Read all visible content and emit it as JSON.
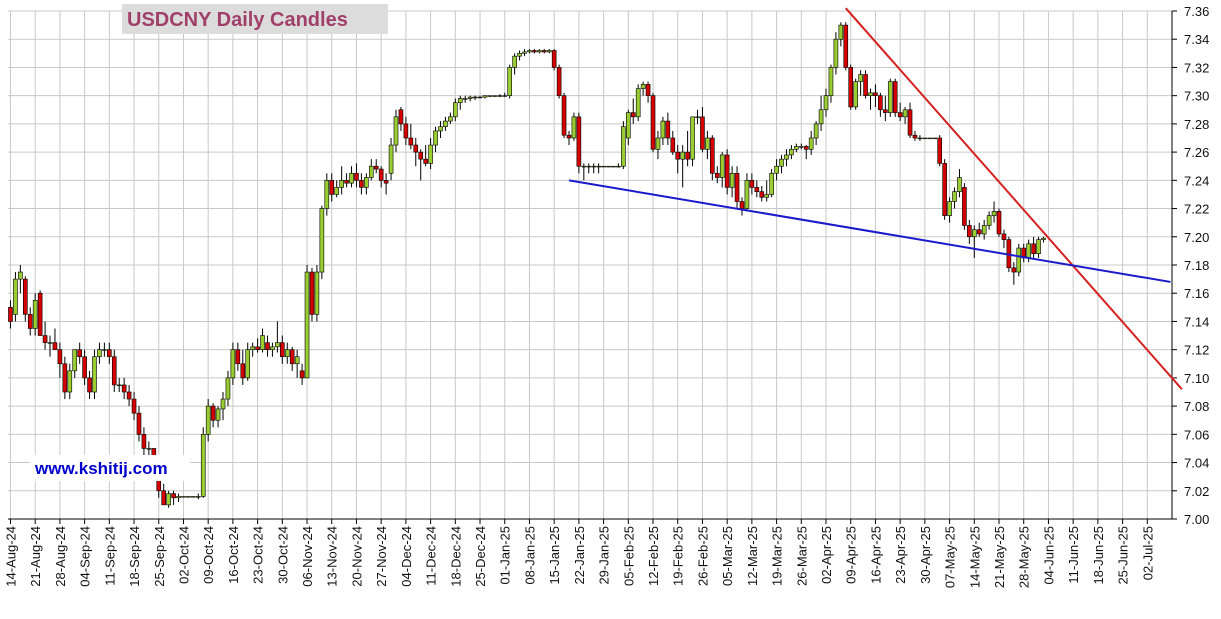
{
  "chart_data": {
    "type": "candlestick",
    "title": "USDCNY Daily Candles",
    "watermark": "www.kshitij.com",
    "up_color": "#9acd32",
    "down_color": "#d40000",
    "grid": true,
    "ylim": [
      7.0,
      7.36
    ],
    "yticks": [
      {
        "value": 7.0,
        "label": "7.00"
      },
      7.02,
      7.04,
      7.06,
      7.08,
      {
        "value": 7.1,
        "label": "7.10"
      },
      7.12,
      7.14,
      7.16,
      7.18,
      {
        "value": 7.2,
        "label": "7.20"
      },
      7.22,
      7.24,
      7.26,
      7.28,
      {
        "value": 7.3,
        "label": "7.30"
      },
      7.32,
      7.34,
      7.36
    ],
    "xlim": [
      -0.5,
      235
    ],
    "xticks": [
      {
        "value": 0,
        "label": "14-Aug-24"
      },
      {
        "value": 5,
        "label": "21-Aug-24"
      },
      {
        "value": 10,
        "label": "28-Aug-24"
      },
      {
        "value": 15,
        "label": "04-Sep-24"
      },
      {
        "value": 20,
        "label": "11-Sep-24"
      },
      {
        "value": 25,
        "label": "18-Sep-24"
      },
      {
        "value": 30,
        "label": "25-Sep-24"
      },
      {
        "value": 35,
        "label": "02-Oct-24"
      },
      {
        "value": 40,
        "label": "09-Oct-24"
      },
      {
        "value": 45,
        "label": "16-Oct-24"
      },
      {
        "value": 50,
        "label": "23-Oct-24"
      },
      {
        "value": 55,
        "label": "30-Oct-24"
      },
      {
        "value": 60,
        "label": "06-Nov-24"
      },
      {
        "value": 65,
        "label": "13-Nov-24"
      },
      {
        "value": 70,
        "label": "20-Nov-24"
      },
      {
        "value": 75,
        "label": "27-Nov-24"
      },
      {
        "value": 80,
        "label": "04-Dec-24"
      },
      {
        "value": 85,
        "label": "11-Dec-24"
      },
      {
        "value": 90,
        "label": "18-Dec-24"
      },
      {
        "value": 95,
        "label": "25-Dec-24"
      },
      {
        "value": 100,
        "label": "01-Jan-25"
      },
      {
        "value": 105,
        "label": "08-Jan-25"
      },
      {
        "value": 110,
        "label": "15-Jan-25"
      },
      {
        "value": 115,
        "label": "22-Jan-25"
      },
      {
        "value": 120,
        "label": "29-Jan-25"
      },
      {
        "value": 125,
        "label": "05-Feb-25"
      },
      {
        "value": 130,
        "label": "12-Feb-25"
      },
      {
        "value": 135,
        "label": "19-Feb-25"
      },
      {
        "value": 140,
        "label": "26-Feb-25"
      },
      {
        "value": 145,
        "label": "05-Mar-25"
      },
      {
        "value": 150,
        "label": "12-Mar-25"
      },
      {
        "value": 155,
        "label": "19-Mar-25"
      },
      {
        "value": 160,
        "label": "26-Mar-25"
      },
      {
        "value": 165,
        "label": "02-Apr-25"
      },
      {
        "value": 170,
        "label": "09-Apr-25"
      },
      {
        "value": 175,
        "label": "16-Apr-25"
      },
      {
        "value": 180,
        "label": "23-Apr-25"
      },
      {
        "value": 185,
        "label": "30-Apr-25"
      },
      {
        "value": 190,
        "label": "07-May-25"
      },
      {
        "value": 195,
        "label": "14-May-25"
      },
      {
        "value": 200,
        "label": "21-May-25"
      },
      {
        "value": 205,
        "label": "28-May-25"
      },
      {
        "value": 210,
        "label": "04-Jun-25"
      },
      {
        "value": 215,
        "label": "11-Jun-25"
      },
      {
        "value": 220,
        "label": "18-Jun-25"
      },
      {
        "value": 225,
        "label": "25-Jun-25"
      },
      {
        "value": 230,
        "label": "02-Jul-25"
      }
    ],
    "candles": [
      [
        7.15,
        7.155,
        7.135,
        7.14
      ],
      [
        7.145,
        7.175,
        7.14,
        7.17
      ],
      [
        7.17,
        7.18,
        7.16,
        7.175
      ],
      [
        7.17,
        7.172,
        7.14,
        7.145
      ],
      [
        7.145,
        7.15,
        7.13,
        7.135
      ],
      [
        7.135,
        7.16,
        7.13,
        7.155
      ],
      [
        7.16,
        7.162,
        7.13,
        7.13
      ],
      [
        7.13,
        7.14,
        7.12,
        7.125
      ],
      [
        7.125,
        7.13,
        7.115,
        7.125
      ],
      [
        7.125,
        7.135,
        7.12,
        7.12
      ],
      [
        7.12,
        7.125,
        7.1,
        7.11
      ],
      [
        7.11,
        7.115,
        7.085,
        7.09
      ],
      [
        7.09,
        7.11,
        7.085,
        7.105
      ],
      [
        7.105,
        7.12,
        7.1,
        7.12
      ],
      [
        7.12,
        7.125,
        7.11,
        7.115
      ],
      [
        7.115,
        7.12,
        7.095,
        7.1
      ],
      [
        7.1,
        7.105,
        7.085,
        7.09
      ],
      [
        7.09,
        7.12,
        7.085,
        7.115
      ],
      [
        7.115,
        7.125,
        7.11,
        7.12
      ],
      [
        7.12,
        7.125,
        7.115,
        7.12
      ],
      [
        7.12,
        7.125,
        7.11,
        7.115
      ],
      [
        7.115,
        7.12,
        7.09,
        7.095
      ],
      [
        7.095,
        7.1,
        7.09,
        7.095
      ],
      [
        7.095,
        7.1,
        7.085,
        7.09
      ],
      [
        7.09,
        7.095,
        7.08,
        7.085
      ],
      [
        7.085,
        7.09,
        7.07,
        7.075
      ],
      [
        7.075,
        7.08,
        7.055,
        7.06
      ],
      [
        7.06,
        7.065,
        7.045,
        7.05
      ],
      [
        7.05,
        7.055,
        7.045,
        7.05
      ],
      [
        7.05,
        7.05,
        7.03,
        7.035
      ],
      [
        7.035,
        7.04,
        7.015,
        7.02
      ],
      [
        7.02,
        7.025,
        7.01,
        7.01
      ],
      [
        7.01,
        7.02,
        7.008,
        7.018
      ],
      [
        7.018,
        7.02,
        7.01,
        7.015
      ],
      [
        7.015,
        7.018,
        7.012,
        7.016
      ],
      [
        7.016,
        7.016,
        7.016,
        7.016
      ],
      [
        7.016,
        7.016,
        7.016,
        7.016
      ],
      [
        7.016,
        7.016,
        7.016,
        7.016
      ],
      [
        7.016,
        7.018,
        7.014,
        7.016
      ],
      [
        7.016,
        7.065,
        7.015,
        7.06
      ],
      [
        7.06,
        7.085,
        7.055,
        7.08
      ],
      [
        7.08,
        7.082,
        7.065,
        7.07
      ],
      [
        7.07,
        7.08,
        7.065,
        7.078
      ],
      [
        7.078,
        7.09,
        7.07,
        7.085
      ],
      [
        7.085,
        7.105,
        7.08,
        7.1
      ],
      [
        7.1,
        7.125,
        7.095,
        7.12
      ],
      [
        7.12,
        7.125,
        7.105,
        7.11
      ],
      [
        7.11,
        7.12,
        7.095,
        7.1
      ],
      [
        7.1,
        7.125,
        7.098,
        7.12
      ],
      [
        7.12,
        7.125,
        7.115,
        7.122
      ],
      [
        7.122,
        7.128,
        7.118,
        7.12
      ],
      [
        7.12,
        7.135,
        7.118,
        7.13
      ],
      [
        7.125,
        7.13,
        7.115,
        7.12
      ],
      [
        7.12,
        7.125,
        7.115,
        7.122
      ],
      [
        7.122,
        7.14,
        7.118,
        7.125
      ],
      [
        7.125,
        7.13,
        7.11,
        7.115
      ],
      [
        7.115,
        7.125,
        7.11,
        7.12
      ],
      [
        7.12,
        7.122,
        7.105,
        7.11
      ],
      [
        7.11,
        7.12,
        7.1,
        7.115
      ],
      [
        7.105,
        7.11,
        7.095,
        7.1
      ],
      [
        7.1,
        7.18,
        7.1,
        7.175
      ],
      [
        7.175,
        7.178,
        7.14,
        7.145
      ],
      [
        7.145,
        7.18,
        7.14,
        7.175
      ],
      [
        7.175,
        7.222,
        7.17,
        7.22
      ],
      [
        7.22,
        7.245,
        7.215,
        7.24
      ],
      [
        7.24,
        7.245,
        7.225,
        7.23
      ],
      [
        7.23,
        7.24,
        7.228,
        7.235
      ],
      [
        7.235,
        7.25,
        7.23,
        7.24
      ],
      [
        7.24,
        7.245,
        7.235,
        7.238
      ],
      [
        7.238,
        7.25,
        7.235,
        7.245
      ],
      [
        7.245,
        7.252,
        7.235,
        7.24
      ],
      [
        7.24,
        7.245,
        7.23,
        7.235
      ],
      [
        7.235,
        7.245,
        7.23,
        7.242
      ],
      [
        7.242,
        7.255,
        7.24,
        7.25
      ],
      [
        7.25,
        7.255,
        7.245,
        7.248
      ],
      [
        7.248,
        7.25,
        7.235,
        7.24
      ],
      [
        7.24,
        7.245,
        7.23,
        7.238
      ],
      [
        7.245,
        7.27,
        7.24,
        7.265
      ],
      [
        7.265,
        7.29,
        7.26,
        7.285
      ],
      [
        7.29,
        7.292,
        7.275,
        7.28
      ],
      [
        7.28,
        7.285,
        7.265,
        7.27
      ],
      [
        7.27,
        7.28,
        7.262,
        7.265
      ],
      [
        7.265,
        7.27,
        7.25,
        7.26
      ],
      [
        7.26,
        7.262,
        7.24,
        7.255
      ],
      [
        7.255,
        7.265,
        7.25,
        7.252
      ],
      [
        7.252,
        7.27,
        7.248,
        7.265
      ],
      [
        7.265,
        7.278,
        7.26,
        7.275
      ],
      [
        7.275,
        7.282,
        7.27,
        7.278
      ],
      [
        7.278,
        7.285,
        7.275,
        7.282
      ],
      [
        7.282,
        7.288,
        7.28,
        7.285
      ],
      [
        7.285,
        7.298,
        7.282,
        7.295
      ],
      [
        7.295,
        7.3,
        7.29,
        7.298
      ],
      [
        7.298,
        7.3,
        7.295,
        7.298
      ],
      [
        7.298,
        7.3,
        7.296,
        7.299
      ],
      [
        7.299,
        7.3,
        7.297,
        7.299
      ],
      [
        7.299,
        7.3,
        7.298,
        7.299
      ],
      [
        7.299,
        7.3,
        7.298,
        7.3
      ],
      [
        7.3,
        7.3,
        7.299,
        7.3
      ],
      [
        7.3,
        7.3,
        7.299,
        7.3
      ],
      [
        7.3,
        7.301,
        7.299,
        7.3
      ],
      [
        7.3,
        7.302,
        7.299,
        7.3
      ],
      [
        7.3,
        7.322,
        7.298,
        7.32
      ],
      [
        7.32,
        7.33,
        7.315,
        7.328
      ],
      [
        7.328,
        7.332,
        7.325,
        7.33
      ],
      [
        7.33,
        7.333,
        7.328,
        7.331
      ],
      [
        7.331,
        7.333,
        7.33,
        7.332
      ],
      [
        7.332,
        7.333,
        7.33,
        7.331
      ],
      [
        7.331,
        7.333,
        7.33,
        7.332
      ],
      [
        7.332,
        7.333,
        7.33,
        7.331
      ],
      [
        7.331,
        7.333,
        7.33,
        7.332
      ],
      [
        7.332,
        7.333,
        7.318,
        7.32
      ],
      [
        7.32,
        7.322,
        7.298,
        7.3
      ],
      [
        7.3,
        7.302,
        7.27,
        7.272
      ],
      [
        7.272,
        7.275,
        7.265,
        7.27
      ],
      [
        7.27,
        7.288,
        7.268,
        7.285
      ],
      [
        7.285,
        7.288,
        7.245,
        7.25
      ],
      [
        7.25,
        7.252,
        7.24,
        7.25
      ],
      [
        7.25,
        7.252,
        7.245,
        7.25
      ],
      [
        7.25,
        7.252,
        7.245,
        7.25
      ],
      [
        7.25,
        7.252,
        7.245,
        7.25
      ],
      [
        7.25,
        7.25,
        7.25,
        7.25
      ],
      [
        7.25,
        7.25,
        7.25,
        7.25
      ],
      [
        7.25,
        7.25,
        7.25,
        7.25
      ],
      [
        7.25,
        7.252,
        7.249,
        7.25
      ],
      [
        7.25,
        7.282,
        7.248,
        7.278
      ],
      [
        7.27,
        7.29,
        7.265,
        7.288
      ],
      [
        7.288,
        7.298,
        7.28,
        7.285
      ],
      [
        7.285,
        7.308,
        7.282,
        7.305
      ],
      [
        7.305,
        7.31,
        7.3,
        7.308
      ],
      [
        7.308,
        7.31,
        7.295,
        7.3
      ],
      [
        7.3,
        7.302,
        7.26,
        7.262
      ],
      [
        7.262,
        7.275,
        7.255,
        7.27
      ],
      [
        7.27,
        7.285,
        7.265,
        7.282
      ],
      [
        7.282,
        7.288,
        7.265,
        7.27
      ],
      [
        7.27,
        7.275,
        7.258,
        7.26
      ],
      [
        7.26,
        7.265,
        7.245,
        7.255
      ],
      [
        7.255,
        7.265,
        7.235,
        7.26
      ],
      [
        7.26,
        7.275,
        7.25,
        7.255
      ],
      [
        7.255,
        7.285,
        7.25,
        7.285
      ],
      [
        7.285,
        7.29,
        7.28,
        7.285
      ],
      [
        7.285,
        7.292,
        7.26,
        7.262
      ],
      [
        7.262,
        7.275,
        7.255,
        7.27
      ],
      [
        7.27,
        7.272,
        7.24,
        7.245
      ],
      [
        7.245,
        7.25,
        7.238,
        7.242
      ],
      [
        7.242,
        7.26,
        7.235,
        7.258
      ],
      [
        7.258,
        7.262,
        7.23,
        7.235
      ],
      [
        7.235,
        7.25,
        7.228,
        7.245
      ],
      [
        7.245,
        7.25,
        7.22,
        7.225
      ],
      [
        7.225,
        7.228,
        7.215,
        7.22
      ],
      [
        7.22,
        7.245,
        7.218,
        7.24
      ],
      [
        7.24,
        7.245,
        7.23,
        7.235
      ],
      [
        7.235,
        7.24,
        7.228,
        7.232
      ],
      [
        7.232,
        7.236,
        7.225,
        7.228
      ],
      [
        7.228,
        7.24,
        7.225,
        7.23
      ],
      [
        7.23,
        7.248,
        7.228,
        7.245
      ],
      [
        7.245,
        7.255,
        7.24,
        7.25
      ],
      [
        7.25,
        7.258,
        7.245,
        7.255
      ],
      [
        7.255,
        7.262,
        7.25,
        7.258
      ],
      [
        7.258,
        7.265,
        7.255,
        7.262
      ],
      [
        7.262,
        7.266,
        7.26,
        7.264
      ],
      [
        7.264,
        7.266,
        7.262,
        7.264
      ],
      [
        7.264,
        7.265,
        7.255,
        7.262
      ],
      [
        7.262,
        7.275,
        7.258,
        7.27
      ],
      [
        7.27,
        7.282,
        7.265,
        7.28
      ],
      [
        7.28,
        7.3,
        7.275,
        7.29
      ],
      [
        7.29,
        7.305,
        7.285,
        7.3
      ],
      [
        7.3,
        7.322,
        7.295,
        7.32
      ],
      [
        7.32,
        7.345,
        7.315,
        7.34
      ],
      [
        7.34,
        7.352,
        7.335,
        7.35
      ],
      [
        7.35,
        7.352,
        7.318,
        7.32
      ],
      [
        7.32,
        7.322,
        7.29,
        7.292
      ],
      [
        7.292,
        7.312,
        7.29,
        7.31
      ],
      [
        7.31,
        7.318,
        7.3,
        7.315
      ],
      [
        7.315,
        7.318,
        7.298,
        7.3
      ],
      [
        7.3,
        7.305,
        7.29,
        7.302
      ],
      [
        7.302,
        7.308,
        7.292,
        7.3
      ],
      [
        7.3,
        7.302,
        7.285,
        7.29
      ],
      [
        7.29,
        7.3,
        7.282,
        7.288
      ],
      [
        7.288,
        7.312,
        7.285,
        7.31
      ],
      [
        7.31,
        7.312,
        7.285,
        7.288
      ],
      [
        7.288,
        7.295,
        7.282,
        7.285
      ],
      [
        7.285,
        7.292,
        7.28,
        7.29
      ],
      [
        7.29,
        7.295,
        7.27,
        7.272
      ],
      [
        7.272,
        7.275,
        7.268,
        7.27
      ],
      [
        7.27,
        7.272,
        7.268,
        7.27
      ],
      [
        7.27,
        7.27,
        7.27,
        7.27
      ],
      [
        7.27,
        7.27,
        7.27,
        7.27
      ],
      [
        7.27,
        7.27,
        7.27,
        7.27
      ],
      [
        7.27,
        7.272,
        7.25,
        7.252
      ],
      [
        7.252,
        7.255,
        7.212,
        7.215
      ],
      [
        7.215,
        7.228,
        7.21,
        7.225
      ],
      [
        7.225,
        7.235,
        7.22,
        7.232
      ],
      [
        7.232,
        7.248,
        7.228,
        7.242
      ],
      [
        7.235,
        7.238,
        7.205,
        7.208
      ],
      [
        7.208,
        7.212,
        7.195,
        7.2
      ],
      [
        7.2,
        7.208,
        7.185,
        7.205
      ],
      [
        7.205,
        7.21,
        7.2,
        7.202
      ],
      [
        7.202,
        7.212,
        7.198,
        7.208
      ],
      [
        7.208,
        7.218,
        7.205,
        7.215
      ],
      [
        7.215,
        7.225,
        7.21,
        7.218
      ],
      [
        7.218,
        7.22,
        7.2,
        7.202
      ],
      [
        7.202,
        7.205,
        7.192,
        7.198
      ],
      [
        7.198,
        7.2,
        7.175,
        7.178
      ],
      [
        7.178,
        7.182,
        7.166,
        7.175
      ],
      [
        7.175,
        7.195,
        7.172,
        7.192
      ],
      [
        7.192,
        7.195,
        7.182,
        7.185
      ],
      [
        7.185,
        7.198,
        7.182,
        7.195
      ],
      [
        7.195,
        7.2,
        7.185,
        7.188
      ],
      [
        7.188,
        7.2,
        7.185,
        7.198
      ],
      [
        7.198,
        7.2,
        7.196,
        7.199
      ]
    ],
    "trend_lines": [
      {
        "color": "#d62020",
        "x": [
          169,
          237
        ],
        "y": [
          7.362,
          7.092
        ]
      },
      {
        "color": "#1a1acc",
        "x": [
          113,
          234.7
        ],
        "y": [
          7.24,
          7.168
        ]
      }
    ]
  }
}
